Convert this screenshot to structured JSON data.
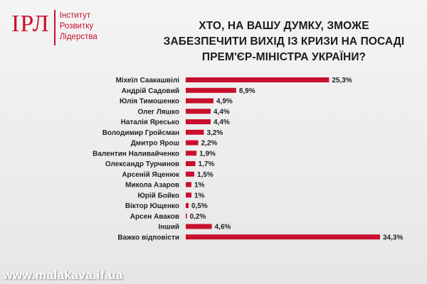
{
  "logo": {
    "mark": "ІРЛ",
    "lines": [
      "Інститут",
      "Розвитку",
      "Лідерства"
    ]
  },
  "title_lines": [
    "ХТО, НА ВАШУ ДУМКУ, ЗМОЖЕ",
    "ЗАБЕЗПЕЧИТИ ВИХІД ІЗ КРИЗИ НА ПОСАДІ",
    "ПРЕМ'ЄР-МІНІСТРА УКРАЇНИ?"
  ],
  "watermark": "www.malakava.if.ua",
  "colors": {
    "bar": "#c8102e",
    "accent": "#c8102e",
    "text": "#222222"
  },
  "chart_data": {
    "type": "bar",
    "orientation": "horizontal",
    "title": "ХТО, НА ВАШУ ДУМКУ, ЗМОЖЕ ЗАБЕЗПЕЧИТИ ВИХІД ІЗ КРИЗИ НА ПОСАДІ ПРЕМ'ЄР-МІНІСТРА УКРАЇНИ?",
    "categories": [
      "Міхеїл Саакашвілі",
      "Андрій Садовий",
      "Юлія Тимошенко",
      "Олег Ляшко",
      "Наталія Яресько",
      "Володимир Гройсман",
      "Дмитро Ярош",
      "Валентин Наливайченко",
      "Олександр Турчинов",
      "Арсеній Яценюк",
      "Микола Азаров",
      "Юрій Бойко",
      "Віктор Ющенко",
      "Арсен Аваков",
      "Інший",
      "Важко відповісти"
    ],
    "values": [
      25.3,
      8.9,
      4.9,
      4.4,
      4.4,
      3.2,
      2.2,
      1.9,
      1.7,
      1.5,
      1,
      1,
      0.5,
      0.2,
      4.6,
      34.3
    ],
    "value_labels": [
      "25,3%",
      "8,9%",
      "4,9%",
      "4,4%",
      "4,4%",
      "3,2%",
      "2,2%",
      "1,9%",
      "1,7%",
      "1,5%",
      "1%",
      "1%",
      "0,5%",
      "0,2%",
      "4,6%",
      "34,3%"
    ],
    "xlim": [
      0,
      34.3
    ],
    "grid": false,
    "legend": "none"
  }
}
